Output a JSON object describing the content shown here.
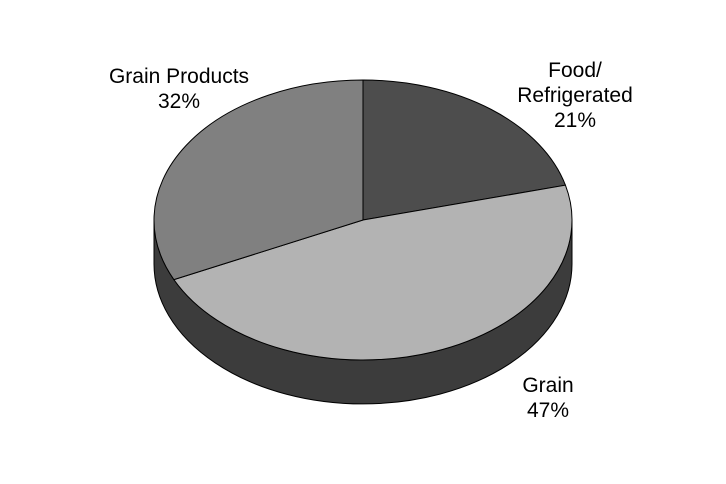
{
  "chart_data": {
    "type": "pie",
    "labels": [
      "Food/ Refrigerated",
      "Grain",
      "Grain Products"
    ],
    "values": [
      21,
      47,
      32
    ],
    "label_lines": [
      [
        "Food/",
        "Refrigerated",
        "21%"
      ],
      [
        "Grain",
        "47%"
      ],
      [
        "Grain Products",
        "32%"
      ]
    ],
    "colors": [
      "#4d4d4d",
      "#b3b3b3",
      "#808080"
    ],
    "side_color": "#3c3c3c",
    "style": "3d"
  }
}
